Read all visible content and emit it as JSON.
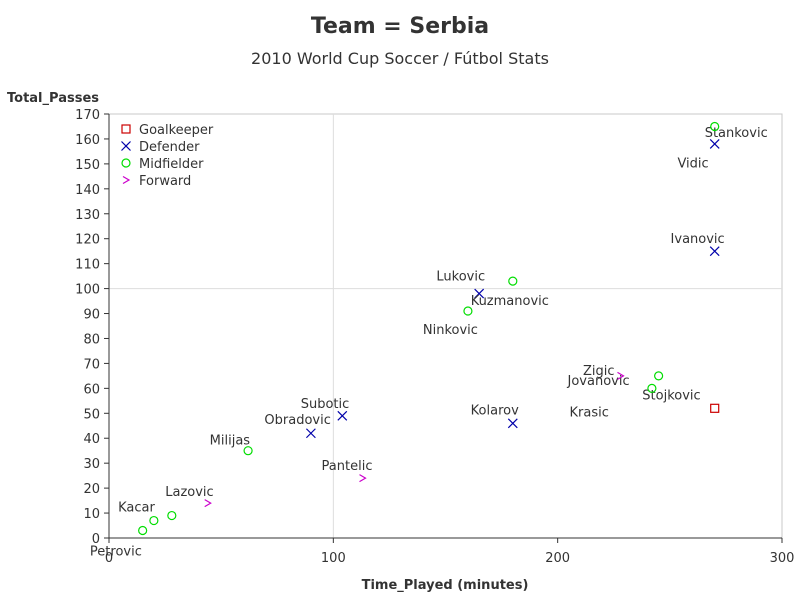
{
  "chart_data": {
    "type": "scatter",
    "title": "Team = Serbia",
    "subtitle": "2010 World Cup Soccer / Fútbol Stats",
    "xlabel": "Time_Played (minutes)",
    "ylabel": "Total_Passes",
    "xlim": [
      0,
      300
    ],
    "ylim": [
      0,
      170
    ],
    "x_ticks": [
      "0",
      "100",
      "200",
      "300"
    ],
    "y_ticks": [
      "0",
      "10",
      "20",
      "30",
      "40",
      "50",
      "60",
      "70",
      "80",
      "90",
      "100",
      "110",
      "120",
      "130",
      "140",
      "150",
      "160",
      "170"
    ],
    "reference_lines": {
      "x": 100,
      "y": 100
    },
    "grid": false,
    "legend_position": "top-left",
    "series": [
      {
        "name": "Goalkeeper",
        "marker": "square",
        "color": "#cc0000",
        "points": [
          {
            "label": "Stojkovic",
            "x": 270,
            "y": 52
          }
        ]
      },
      {
        "name": "Defender",
        "marker": "x",
        "color": "#0000aa",
        "points": [
          {
            "label": "Stankovic",
            "x": 270,
            "y": 158
          },
          {
            "label": "Ivanovic",
            "x": 270,
            "y": 115
          },
          {
            "label": "Lukovic",
            "x": 165,
            "y": 98
          },
          {
            "label": "Kolarov",
            "x": 180,
            "y": 46
          },
          {
            "label": "Subotic",
            "x": 104,
            "y": 49
          },
          {
            "label": "Obradovic",
            "x": 90,
            "y": 42
          }
        ]
      },
      {
        "name": "Midfielder",
        "marker": "circle",
        "color": "#00dd00",
        "points": [
          {
            "label": "Vidic",
            "x": 270,
            "y": 165
          },
          {
            "label": "Kuzmanovic",
            "x": 180,
            "y": 103
          },
          {
            "label": "Ninkovic",
            "x": 160,
            "y": 91
          },
          {
            "label": "Jovanovic",
            "x": 245,
            "y": 65
          },
          {
            "label": "Krasic",
            "x": 242,
            "y": 60
          },
          {
            "label": "Milijas",
            "x": 62,
            "y": 35
          },
          {
            "label": "Kacar",
            "x": 28,
            "y": 9
          },
          {
            "label": "Petrovic",
            "x": 20,
            "y": 7
          },
          {
            "label": "",
            "x": 15,
            "y": 3
          }
        ]
      },
      {
        "name": "Forward",
        "marker": "chevron",
        "color": "#cc00cc",
        "points": [
          {
            "label": "Zigic",
            "x": 228,
            "y": 65
          },
          {
            "label": "Pantelic",
            "x": 113,
            "y": 24
          },
          {
            "label": "Lazovic",
            "x": 44,
            "y": 14
          }
        ]
      }
    ]
  }
}
